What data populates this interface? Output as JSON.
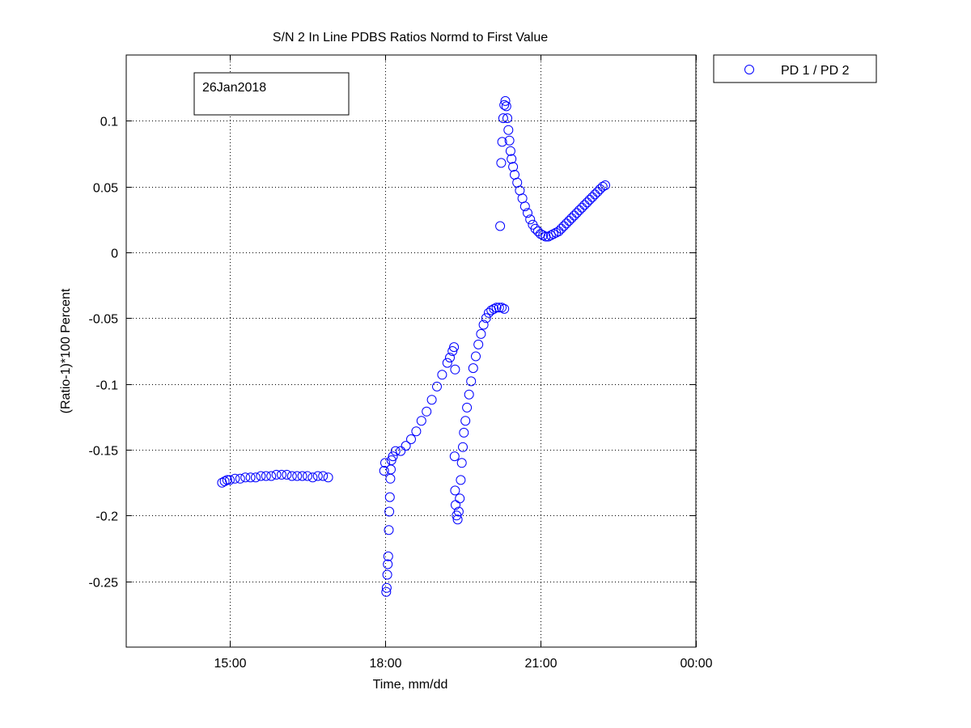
{
  "chart_data": {
    "type": "scatter",
    "title": "S/N 2 In Line PDBS Ratios Normd to First Value",
    "xlabel": "Time, mm/dd",
    "ylabel": "(Ratio-1)*100 Percent",
    "annotation": "26Jan2018",
    "x_units": "hours on 26Jan2018 (24 = 00:00 next day)",
    "xlim": [
      13.0,
      24.0
    ],
    "ylim": [
      -0.3,
      0.15
    ],
    "xticks": [
      {
        "value": 15,
        "label": "15:00"
      },
      {
        "value": 18,
        "label": "18:00"
      },
      {
        "value": 21,
        "label": "21:00"
      },
      {
        "value": 24,
        "label": "00:00"
      }
    ],
    "yticks": [
      {
        "value": 0.1,
        "label": "0.1"
      },
      {
        "value": 0.05,
        "label": "0.05"
      },
      {
        "value": 0,
        "label": "0"
      },
      {
        "value": -0.05,
        "label": "-0.05"
      },
      {
        "value": -0.1,
        "label": "-0.1"
      },
      {
        "value": -0.15,
        "label": "-0.15"
      },
      {
        "value": -0.2,
        "label": "-0.2"
      },
      {
        "value": -0.25,
        "label": "-0.25"
      }
    ],
    "grid": true,
    "legend_position": "outside-top-right",
    "series": [
      {
        "name": "PD 1 / PD 2",
        "color": "#0000ff",
        "marker": "circle-open",
        "points": [
          [
            14.85,
            -0.175
          ],
          [
            14.9,
            -0.174
          ],
          [
            14.95,
            -0.173
          ],
          [
            15.0,
            -0.173
          ],
          [
            15.1,
            -0.172
          ],
          [
            15.2,
            -0.172
          ],
          [
            15.3,
            -0.171
          ],
          [
            15.4,
            -0.171
          ],
          [
            15.5,
            -0.171
          ],
          [
            15.6,
            -0.17
          ],
          [
            15.7,
            -0.17
          ],
          [
            15.8,
            -0.17
          ],
          [
            15.9,
            -0.169
          ],
          [
            16.0,
            -0.169
          ],
          [
            16.1,
            -0.169
          ],
          [
            16.2,
            -0.17
          ],
          [
            16.3,
            -0.17
          ],
          [
            16.4,
            -0.17
          ],
          [
            16.5,
            -0.17
          ],
          [
            16.6,
            -0.171
          ],
          [
            16.7,
            -0.17
          ],
          [
            16.8,
            -0.17
          ],
          [
            16.9,
            -0.171
          ],
          [
            17.98,
            -0.166
          ],
          [
            18.0,
            -0.16
          ],
          [
            18.02,
            -0.258
          ],
          [
            18.03,
            -0.255
          ],
          [
            18.04,
            -0.245
          ],
          [
            18.05,
            -0.237
          ],
          [
            18.06,
            -0.231
          ],
          [
            18.07,
            -0.211
          ],
          [
            18.08,
            -0.197
          ],
          [
            18.09,
            -0.186
          ],
          [
            18.1,
            -0.172
          ],
          [
            18.11,
            -0.165
          ],
          [
            18.12,
            -0.158
          ],
          [
            18.15,
            -0.155
          ],
          [
            18.2,
            -0.151
          ],
          [
            18.3,
            -0.151
          ],
          [
            18.4,
            -0.147
          ],
          [
            18.5,
            -0.142
          ],
          [
            18.6,
            -0.136
          ],
          [
            18.7,
            -0.128
          ],
          [
            18.8,
            -0.121
          ],
          [
            18.9,
            -0.112
          ],
          [
            19.0,
            -0.102
          ],
          [
            19.1,
            -0.093
          ],
          [
            19.2,
            -0.084
          ],
          [
            19.25,
            -0.08
          ],
          [
            19.3,
            -0.075
          ],
          [
            19.33,
            -0.072
          ],
          [
            19.35,
            -0.089
          ],
          [
            19.34,
            -0.155
          ],
          [
            19.35,
            -0.181
          ],
          [
            19.36,
            -0.192
          ],
          [
            19.38,
            -0.2
          ],
          [
            19.4,
            -0.203
          ],
          [
            19.42,
            -0.197
          ],
          [
            19.44,
            -0.187
          ],
          [
            19.46,
            -0.173
          ],
          [
            19.48,
            -0.16
          ],
          [
            19.5,
            -0.148
          ],
          [
            19.52,
            -0.137
          ],
          [
            19.55,
            -0.128
          ],
          [
            19.58,
            -0.118
          ],
          [
            19.62,
            -0.108
          ],
          [
            19.66,
            -0.098
          ],
          [
            19.7,
            -0.088
          ],
          [
            19.75,
            -0.079
          ],
          [
            19.8,
            -0.07
          ],
          [
            19.85,
            -0.062
          ],
          [
            19.9,
            -0.055
          ],
          [
            19.95,
            -0.05
          ],
          [
            20.0,
            -0.046
          ],
          [
            20.05,
            -0.044
          ],
          [
            20.1,
            -0.043
          ],
          [
            20.15,
            -0.042
          ],
          [
            20.2,
            -0.042
          ],
          [
            20.25,
            -0.042
          ],
          [
            20.3,
            -0.043
          ],
          [
            20.22,
            0.02
          ],
          [
            20.24,
            0.068
          ],
          [
            20.26,
            0.084
          ],
          [
            20.28,
            0.102
          ],
          [
            20.3,
            0.112
          ],
          [
            20.32,
            0.115
          ],
          [
            20.34,
            0.111
          ],
          [
            20.36,
            0.102
          ],
          [
            20.38,
            0.093
          ],
          [
            20.4,
            0.085
          ],
          [
            20.42,
            0.077
          ],
          [
            20.44,
            0.071
          ],
          [
            20.47,
            0.065
          ],
          [
            20.5,
            0.059
          ],
          [
            20.55,
            0.053
          ],
          [
            20.6,
            0.047
          ],
          [
            20.65,
            0.041
          ],
          [
            20.7,
            0.035
          ],
          [
            20.75,
            0.03
          ],
          [
            20.8,
            0.025
          ],
          [
            20.85,
            0.021
          ],
          [
            20.9,
            0.018
          ],
          [
            20.95,
            0.016
          ],
          [
            21.0,
            0.014
          ],
          [
            21.05,
            0.013
          ],
          [
            21.1,
            0.012
          ],
          [
            21.15,
            0.012
          ],
          [
            21.2,
            0.013
          ],
          [
            21.25,
            0.014
          ],
          [
            21.3,
            0.015
          ],
          [
            21.35,
            0.016
          ],
          [
            21.4,
            0.018
          ],
          [
            21.45,
            0.02
          ],
          [
            21.5,
            0.022
          ],
          [
            21.55,
            0.024
          ],
          [
            21.6,
            0.026
          ],
          [
            21.65,
            0.028
          ],
          [
            21.7,
            0.03
          ],
          [
            21.75,
            0.032
          ],
          [
            21.8,
            0.034
          ],
          [
            21.85,
            0.036
          ],
          [
            21.9,
            0.038
          ],
          [
            21.95,
            0.04
          ],
          [
            22.0,
            0.042
          ],
          [
            22.05,
            0.044
          ],
          [
            22.1,
            0.046
          ],
          [
            22.15,
            0.048
          ],
          [
            22.2,
            0.05
          ],
          [
            22.25,
            0.051
          ]
        ]
      }
    ]
  }
}
